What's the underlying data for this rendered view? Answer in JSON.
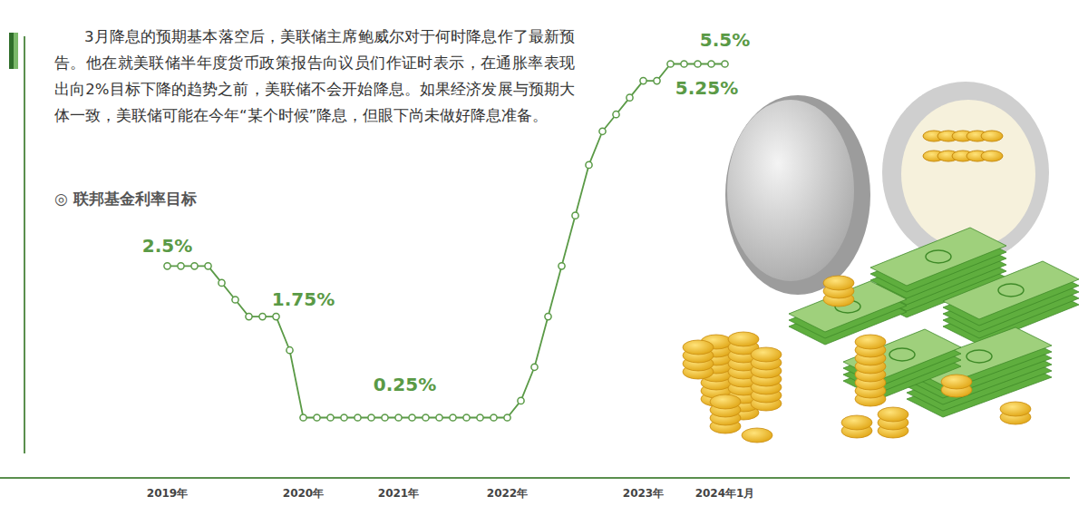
{
  "chart_data": {
    "type": "line",
    "title": "◎ 联邦基金利率目标",
    "subtitle": "3月降息的预期基本落空后，美联储主席鲍威尔对于何时降息作了最新预告。他在就美联储半年度货币政策报告向议员们作证时表示，在通胀率表现出向2%目标下降的趋势之前，美联储不会开始降息。如果经济发展与预期大体一致，美联储可能在今年“某个时候”降息，但眼下尚未做好降息准备。",
    "categories": [
      "2019年",
      null,
      null,
      null,
      null,
      null,
      null,
      null,
      null,
      null,
      "2020年",
      null,
      null,
      null,
      null,
      null,
      null,
      "2021年",
      null,
      null,
      null,
      null,
      null,
      null,
      null,
      "2022年",
      null,
      null,
      null,
      null,
      null,
      null,
      null,
      null,
      null,
      "2023年",
      null,
      null,
      null,
      null,
      null,
      "2024年1月"
    ],
    "values": [
      2.5,
      2.5,
      2.5,
      2.5,
      2.25,
      2.0,
      1.75,
      1.75,
      1.75,
      1.25,
      0.25,
      0.25,
      0.25,
      0.25,
      0.25,
      0.25,
      0.25,
      0.25,
      0.25,
      0.25,
      0.25,
      0.25,
      0.25,
      0.25,
      0.25,
      0.25,
      0.5,
      1.0,
      1.75,
      2.5,
      3.25,
      4.0,
      4.5,
      4.75,
      5.0,
      5.25,
      5.25,
      5.5,
      5.5,
      5.5,
      5.5,
      5.5
    ],
    "value_labels": [
      "2.5%",
      null,
      null,
      null,
      null,
      null,
      null,
      null,
      "1.75%",
      null,
      null,
      null,
      null,
      null,
      null,
      null,
      null,
      "0.25%",
      null,
      null,
      null,
      null,
      null,
      null,
      null,
      null,
      null,
      null,
      null,
      null,
      null,
      null,
      null,
      null,
      null,
      null,
      "5.25%",
      null,
      null,
      null,
      null,
      "5.5%"
    ],
    "data_labels": true,
    "color": "#5a9a46",
    "marker": "circle",
    "tick_labels": "x"
  }
}
